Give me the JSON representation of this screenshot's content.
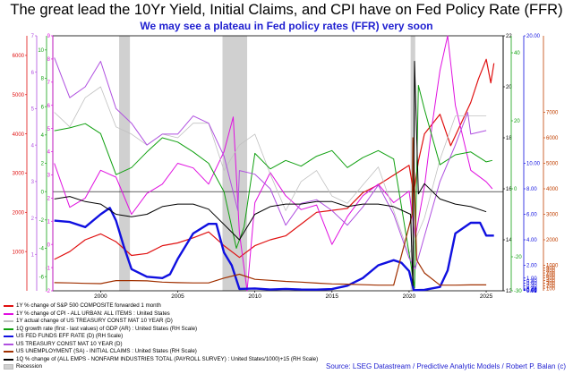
{
  "title": "The great lead the 10Yr Yield, Initial Claims, and CPI have on Fed Policy Rate (FFR)",
  "subtitle": "We may see a plateau in Fed policy rates (FFR) very soon",
  "source": "Source: LSEG Datastream / Predictive Analytic Models / Robert P. Balan (c)",
  "chart_data": {
    "type": "line",
    "x_range": [
      1996.9,
      2026.1
    ],
    "x_ticks": [
      {
        "value": 2000,
        "label": "2000"
      },
      {
        "value": 2005,
        "label": "2005"
      },
      {
        "value": 2010,
        "label": "2010"
      },
      {
        "value": 2015,
        "label": "2015"
      },
      {
        "value": 2020,
        "label": "2020"
      },
      {
        "value": 2025,
        "label": "2025"
      }
    ],
    "recessions": [
      [
        2001.2,
        2001.9
      ],
      [
        2007.9,
        2009.5
      ],
      [
        2020.1,
        2020.4
      ]
    ],
    "axes": [
      {
        "id": "sp",
        "side": "left",
        "color": "#e01010",
        "min": 0,
        "max": 6500,
        "ticks": [
          {
            "value": 1000,
            "label": "1000"
          },
          {
            "value": 2000,
            "label": "2000"
          },
          {
            "value": 3000,
            "label": "3000"
          },
          {
            "value": 4000,
            "label": "4000"
          },
          {
            "value": 5000,
            "label": "5000"
          },
          {
            "value": 6000,
            "label": "6000"
          }
        ]
      },
      {
        "id": "ust10",
        "side": "left",
        "color": "#b050e0",
        "min": 0,
        "max": 7,
        "ticks": [
          {
            "value": 1,
            "label": "1"
          },
          {
            "value": 2,
            "label": "2"
          },
          {
            "value": 3,
            "label": "3"
          },
          {
            "value": 4,
            "label": "4"
          },
          {
            "value": 5,
            "label": "5"
          },
          {
            "value": 6,
            "label": "6"
          },
          {
            "value": 7,
            "label": "7"
          }
        ]
      },
      {
        "id": "gdp",
        "side": "left",
        "color": "#10a010",
        "min": -7,
        "max": 11,
        "ticks": [
          {
            "value": -6,
            "label": "-6"
          },
          {
            "value": -4,
            "label": "-4"
          },
          {
            "value": -2,
            "label": "-2"
          },
          {
            "value": 0,
            "label": "0"
          },
          {
            "value": 2,
            "label": "2"
          },
          {
            "value": 4,
            "label": "4"
          },
          {
            "value": 6,
            "label": "6"
          },
          {
            "value": 8,
            "label": "8"
          },
          {
            "value": 10,
            "label": "10"
          }
        ]
      },
      {
        "id": "cpi",
        "side": "left",
        "color": "#e010e0",
        "min": -2,
        "max": 9,
        "ticks": [
          {
            "value": -2,
            "label": "-2"
          },
          {
            "value": -1,
            "label": "-1"
          },
          {
            "value": 0,
            "label": "0"
          },
          {
            "value": 1,
            "label": "1"
          },
          {
            "value": 2,
            "label": "2"
          },
          {
            "value": 3,
            "label": "3"
          },
          {
            "value": 4,
            "label": "4"
          },
          {
            "value": 5,
            "label": "5"
          },
          {
            "value": 6,
            "label": "6"
          },
          {
            "value": 7,
            "label": "7"
          },
          {
            "value": 8,
            "label": "8"
          },
          {
            "value": 9,
            "label": "9"
          }
        ]
      },
      {
        "id": "paybox",
        "side": "right",
        "color": "#000000",
        "min": 12,
        "max": 22,
        "ticks": [
          {
            "value": 12,
            "label": "12"
          },
          {
            "value": 14,
            "label": "14"
          },
          {
            "value": 16,
            "label": "16"
          },
          {
            "value": 18,
            "label": "18"
          },
          {
            "value": 20,
            "label": "20"
          },
          {
            "value": 22,
            "label": "22"
          }
        ]
      },
      {
        "id": "payg",
        "side": "right",
        "color": "#10a010",
        "min": -30,
        "max": 45,
        "ticks": [
          {
            "value": -30,
            "label": "-30"
          },
          {
            "value": -20,
            "label": "-20"
          },
          {
            "value": 0,
            "label": "0"
          },
          {
            "value": 20,
            "label": "20"
          },
          {
            "value": 40,
            "label": "40"
          }
        ]
      },
      {
        "id": "ffr",
        "side": "right",
        "color": "#1010e0",
        "min": 0,
        "max": 20,
        "ticks": [
          {
            "value": 20,
            "label": "20.00"
          },
          {
            "value": 10,
            "label": "10.00"
          },
          {
            "value": 8,
            "label": "8.00"
          },
          {
            "value": 6,
            "label": "6.00"
          },
          {
            "value": 4,
            "label": "4.00"
          },
          {
            "value": 2,
            "label": "2.00"
          },
          {
            "value": 1,
            "label": "1.00"
          },
          {
            "value": 0.8,
            "label": "0.80"
          },
          {
            "value": 0.6,
            "label": "0.60"
          },
          {
            "value": 0.4,
            "label": "0.40"
          },
          {
            "value": 0.2,
            "label": "0.20"
          },
          {
            "value": 0.1,
            "label": "0.10"
          },
          {
            "value": 0.08,
            "label": "0.08"
          },
          {
            "value": 0.06,
            "label": "0.06"
          },
          {
            "value": 0.04,
            "label": "0.04"
          },
          {
            "value": 0.02,
            "label": "0.02"
          }
        ]
      },
      {
        "id": "claims",
        "side": "right",
        "color": "#c04000",
        "min": 0,
        "max": 10000,
        "ticks": [
          {
            "value": 100,
            "label": "100"
          },
          {
            "value": 200,
            "label": "200"
          },
          {
            "value": 300,
            "label": "300"
          },
          {
            "value": 400,
            "label": "400"
          },
          {
            "value": 500,
            "label": "500"
          },
          {
            "value": 600,
            "label": "600"
          },
          {
            "value": 700,
            "label": "700"
          },
          {
            "value": 800,
            "label": "800"
          },
          {
            "value": 900,
            "label": "900"
          },
          {
            "value": 1000,
            "label": "1000"
          },
          {
            "value": 2000,
            "label": "2000"
          },
          {
            "value": 3000,
            "label": "3000"
          },
          {
            "value": 4000,
            "label": "4000"
          },
          {
            "value": 5000,
            "label": "5000"
          },
          {
            "value": 6000,
            "label": "6000"
          },
          {
            "value": 7000,
            "label": "7000"
          }
        ]
      }
    ],
    "series": [
      {
        "name": "1Y % change of S&P 500 COMPOSITE forwarded 1 month",
        "color": "#e01010",
        "width": 1.2,
        "x": [
          1997,
          1998,
          1999,
          2000,
          2001,
          2002,
          2003,
          2004,
          2005,
          2006,
          2007,
          2008,
          2009,
          2010,
          2011,
          2012,
          2013,
          2014,
          2015,
          2016,
          2017,
          2018,
          2019,
          2020,
          2020.3,
          2020.6,
          2021,
          2022,
          2022.7,
          2023,
          2024,
          2024.5,
          2025,
          2025.3,
          2025.5
        ],
        "y": [
          800,
          1000,
          1300,
          1450,
          1250,
          900,
          950,
          1150,
          1220,
          1350,
          1500,
          1150,
          850,
          1150,
          1300,
          1400,
          1700,
          2000,
          2050,
          2100,
          2500,
          2700,
          2950,
          3200,
          2500,
          3300,
          4000,
          4500,
          3700,
          3950,
          4800,
          5400,
          5900,
          5300,
          5800
        ]
      },
      {
        "name": "1Y % change of CPI - ALL URBAN: ALL ITEMS : United States",
        "color": "#e010e0",
        "width": 1,
        "x": [
          1997,
          1998,
          1999,
          2000,
          2001,
          2002,
          2003,
          2004,
          2005,
          2006,
          2007,
          2008,
          2008.6,
          2009,
          2009.5,
          2010,
          2011,
          2012,
          2013,
          2014,
          2015,
          2016,
          2017,
          2018,
          2019,
          2020,
          2020.4,
          2021,
          2021.5,
          2022,
          2022.5,
          2023,
          2024,
          2025,
          2025.4
        ],
        "y": [
          3.5,
          1.6,
          2.0,
          3.2,
          2.9,
          1.3,
          2.2,
          2.6,
          3.5,
          3.3,
          2.6,
          4.0,
          5.5,
          0.5,
          -2.0,
          1.8,
          3.1,
          2.1,
          1.5,
          1.7,
          0.0,
          1.2,
          2.1,
          2.6,
          1.8,
          2.3,
          0.3,
          2.5,
          5.2,
          7.5,
          9.0,
          6.0,
          3.2,
          2.7,
          2.4
        ]
      },
      {
        "name": "1Y actual change of US TREASURY CONST MAT 10 YEAR (D)",
        "color": "#c0c0c0",
        "width": 0.8,
        "x": [
          1997,
          1998,
          1999,
          2000,
          2001,
          2002,
          2003,
          2004,
          2005,
          2006,
          2007,
          2008,
          2009,
          2010,
          2011,
          2012,
          2013,
          2014,
          2015,
          2016,
          2017,
          2018,
          2019,
          2020,
          2021,
          2022,
          2023,
          2024,
          2025
        ],
        "y": [
          4.9,
          4.5,
          5.3,
          5.6,
          4.5,
          4.3,
          4.0,
          4.3,
          4.2,
          4.6,
          4.6,
          3.3,
          4.0,
          4.3,
          3.2,
          2.2,
          3.0,
          3.3,
          2.6,
          2.4,
          2.9,
          3.4,
          2.2,
          1.0,
          2.0,
          3.6,
          4.8,
          4.8,
          4.8
        ]
      },
      {
        "name": "1Q growth rate (first - last values) of GDP (AR) : United States (RH Scale)",
        "color": "#10a010",
        "width": 1,
        "x": [
          1997,
          1998,
          1999,
          2000,
          2001,
          2002,
          2003,
          2004,
          2005,
          2006,
          2007,
          2008,
          2008.8,
          2009.3,
          2010,
          2011,
          2012,
          2013,
          2014,
          2015,
          2016,
          2017,
          2018,
          2019,
          2020.1,
          2020.35,
          2020.6,
          2021,
          2022,
          2023,
          2024,
          2025,
          2025.4
        ],
        "y": [
          4.3,
          4.5,
          4.8,
          4.1,
          1.2,
          1.7,
          2.8,
          3.8,
          3.5,
          2.8,
          2.0,
          0.0,
          -4.0,
          -2.5,
          2.7,
          1.6,
          2.2,
          1.8,
          2.5,
          2.9,
          1.7,
          2.4,
          2.9,
          2.3,
          -5.0,
          -6.8,
          7.5,
          5.8,
          1.9,
          2.6,
          2.8,
          2.1,
          2.2
        ]
      },
      {
        "name": "US FED FUNDS EFF RATE (D) (RH Scale)",
        "color": "#1010e0",
        "width": 2.4,
        "x": [
          1997,
          1998,
          1999,
          2000,
          2000.6,
          2001,
          2001.5,
          2002,
          2003,
          2004,
          2004.5,
          2005,
          2006,
          2007,
          2007.5,
          2008,
          2008.5,
          2009,
          2010,
          2011,
          2012,
          2013,
          2014,
          2015,
          2016,
          2017,
          2018,
          2019,
          2019.5,
          2020,
          2020.3,
          2021,
          2022,
          2022.5,
          2023,
          2024,
          2024.6,
          2025,
          2025.5
        ],
        "y": [
          5.5,
          5.4,
          5.0,
          6.0,
          6.5,
          5.5,
          3.5,
          1.7,
          1.1,
          1.0,
          1.3,
          2.5,
          4.5,
          5.25,
          5.25,
          3.0,
          2.0,
          0.15,
          0.18,
          0.1,
          0.15,
          0.1,
          0.09,
          0.13,
          0.4,
          1.0,
          2.0,
          2.4,
          2.2,
          1.55,
          0.05,
          0.08,
          0.3,
          1.6,
          4.5,
          5.33,
          5.33,
          4.33,
          4.33
        ]
      },
      {
        "name": "US TREASURY CONST MAT 10 YEAR (D)",
        "color": "#b050e0",
        "width": 1,
        "x": [
          1997,
          1998,
          1999,
          2000,
          2001,
          2002,
          2003,
          2004,
          2005,
          2006,
          2007,
          2008,
          2008.9,
          2009,
          2010,
          2011,
          2012,
          2013,
          2014,
          2015,
          2016,
          2017,
          2018,
          2019,
          2020,
          2020.4,
          2021,
          2022,
          2023,
          2023.8,
          2024,
          2025
        ],
        "y": [
          6.4,
          5.3,
          5.6,
          6.3,
          5.0,
          4.6,
          4.0,
          4.3,
          4.3,
          4.8,
          4.6,
          3.7,
          2.2,
          3.3,
          3.2,
          2.8,
          1.8,
          2.4,
          2.5,
          2.2,
          1.8,
          2.3,
          2.9,
          2.1,
          0.9,
          0.6,
          1.5,
          3.0,
          4.0,
          4.9,
          4.3,
          4.4
        ]
      },
      {
        "name": "US UNEMPLOYMENT (SA) - INITIAL CLAIMS : United States (RH Scale)",
        "color": "#a03000",
        "width": 1.2,
        "x": [
          1997,
          1998,
          1999,
          2000,
          2001,
          2002,
          2003,
          2004,
          2005,
          2006,
          2007,
          2008,
          2009,
          2010,
          2011,
          2012,
          2013,
          2014,
          2015,
          2016,
          2017,
          2018,
          2019,
          2020.2,
          2020.25,
          2020.5,
          2021,
          2022,
          2023,
          2024,
          2025
        ],
        "y": [
          320,
          310,
          290,
          280,
          400,
          400,
          390,
          340,
          320,
          310,
          310,
          500,
          650,
          450,
          410,
          370,
          340,
          300,
          270,
          260,
          240,
          220,
          220,
          3000,
          6000,
          1200,
          700,
          220,
          220,
          230,
          230
        ]
      },
      {
        "name": "1Q % change of (ALL EMPS - NONFARM INDUSTRIES TOTAL (PAYROLL SURVEY) : United States/1000)+15 (RH Scale)",
        "color": "#000000",
        "width": 1,
        "x": [
          1997,
          1998,
          1999,
          2000,
          2001,
          2002,
          2003,
          2004,
          2005,
          2006,
          2007,
          2008,
          2009,
          2010,
          2011,
          2012,
          2013,
          2014,
          2015,
          2016,
          2017,
          2018,
          2019,
          2020.1,
          2020.25,
          2020.35,
          2020.6,
          2021,
          2022,
          2023,
          2024,
          2025
        ],
        "y": [
          15.6,
          15.7,
          15.5,
          15.4,
          15.0,
          14.9,
          15.0,
          15.3,
          15.4,
          15.4,
          15.2,
          14.6,
          14.0,
          15.0,
          15.3,
          15.4,
          15.4,
          15.5,
          15.5,
          15.3,
          15.4,
          15.4,
          15.3,
          15.0,
          12.2,
          21.0,
          15.8,
          16.2,
          15.6,
          15.4,
          15.3,
          15.1
        ]
      }
    ],
    "legend": [
      {
        "label": "1Y % change of S&P 500 COMPOSITE forwarded 1 month",
        "color": "#e01010",
        "kind": "line"
      },
      {
        "label": "1Y % change of CPI - ALL URBAN: ALL ITEMS : United States",
        "color": "#e010e0",
        "kind": "line"
      },
      {
        "label": "1Y actual change of US TREASURY CONST MAT 10 YEAR (D)",
        "color": "#c0c0c0",
        "kind": "line"
      },
      {
        "label": "1Q growth rate (first - last values) of GDP (AR) : United States (RH Scale)",
        "color": "#10a010",
        "kind": "line"
      },
      {
        "label": "US FED FUNDS EFF RATE (D) (RH Scale)",
        "color": "#1010e0",
        "kind": "line"
      },
      {
        "label": "US TREASURY CONST MAT 10 YEAR (D)",
        "color": "#b050e0",
        "kind": "line"
      },
      {
        "label": "US UNEMPLOYMENT (SA) - INITIAL CLAIMS : United States (RH Scale)",
        "color": "#a03000",
        "kind": "line"
      },
      {
        "label": "1Q % change of (ALL EMPS - NONFARM INDUSTRIES TOTAL (PAYROLL SURVEY) : United States/1000)+15 (RH Scale)",
        "color": "#000000",
        "kind": "line"
      },
      {
        "label": "Recession",
        "color": "#d0d0d0",
        "kind": "box"
      }
    ]
  }
}
